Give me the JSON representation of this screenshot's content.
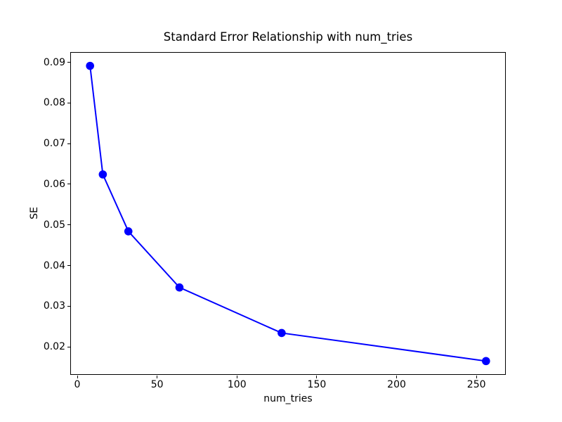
{
  "figure": {
    "background": "#ffffff",
    "text_color": "#000000"
  },
  "chart_data": {
    "type": "line",
    "title": "Standard Error Relationship with num_tries",
    "xlabel": "num_tries",
    "ylabel": "SE",
    "series": [
      {
        "name": "SE",
        "color": "#0000ff",
        "marker": "circle",
        "marker_radius": 5.8,
        "line_width": 2,
        "x": [
          8,
          16,
          32,
          64,
          128,
          256
        ],
        "y": [
          0.0892,
          0.0625,
          0.0485,
          0.0347,
          0.0235,
          0.0166
        ]
      }
    ],
    "xlim": [
      -4.4,
      268.4
    ],
    "ylim": [
      0.0132,
      0.0926
    ],
    "x_ticks": [
      0,
      50,
      100,
      150,
      200,
      250
    ],
    "y_ticks": [
      0.02,
      0.03,
      0.04,
      0.05,
      0.06,
      0.07,
      0.08,
      0.09
    ],
    "y_tick_decimals": 2,
    "grid": false,
    "legend_position": "none"
  }
}
